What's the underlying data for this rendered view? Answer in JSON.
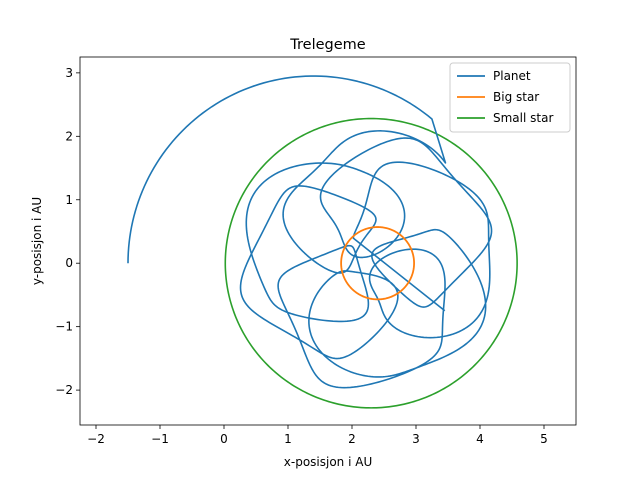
{
  "chart_data": {
    "type": "line",
    "title": "Trelegeme",
    "xlabel": "x-posisjon i AU",
    "ylabel": "y-posisjon i AU",
    "xlim": [
      -2.25,
      5.5
    ],
    "ylim": [
      -2.55,
      3.25
    ],
    "xticks": [
      -2,
      -1,
      0,
      1,
      2,
      3,
      4,
      5
    ],
    "yticks": [
      -2,
      -1,
      0,
      1,
      2,
      3
    ],
    "grid": false,
    "legend_position": "top-right",
    "series": [
      {
        "name": "Planet",
        "color": "#1f77b4",
        "approximate_shape": "spirograph-like trajectory starting at (-1.5, 0), sweeping over the top to about (1.4, 2.95) and looping many times around the centre (2.3, 0), ending near (3.45, -0.75)",
        "start": [
          -1.5,
          0.0
        ],
        "end": [
          3.45,
          -0.75
        ],
        "top_point": [
          1.4,
          2.95
        ]
      },
      {
        "name": "Big star",
        "color": "#ff7f0e",
        "approximate_shape": "circle",
        "center": [
          2.4,
          0.0
        ],
        "radius": 0.57
      },
      {
        "name": "Small star",
        "color": "#2ca02c",
        "approximate_shape": "circle",
        "center": [
          2.3,
          0.0
        ],
        "radius": 2.28
      }
    ]
  }
}
